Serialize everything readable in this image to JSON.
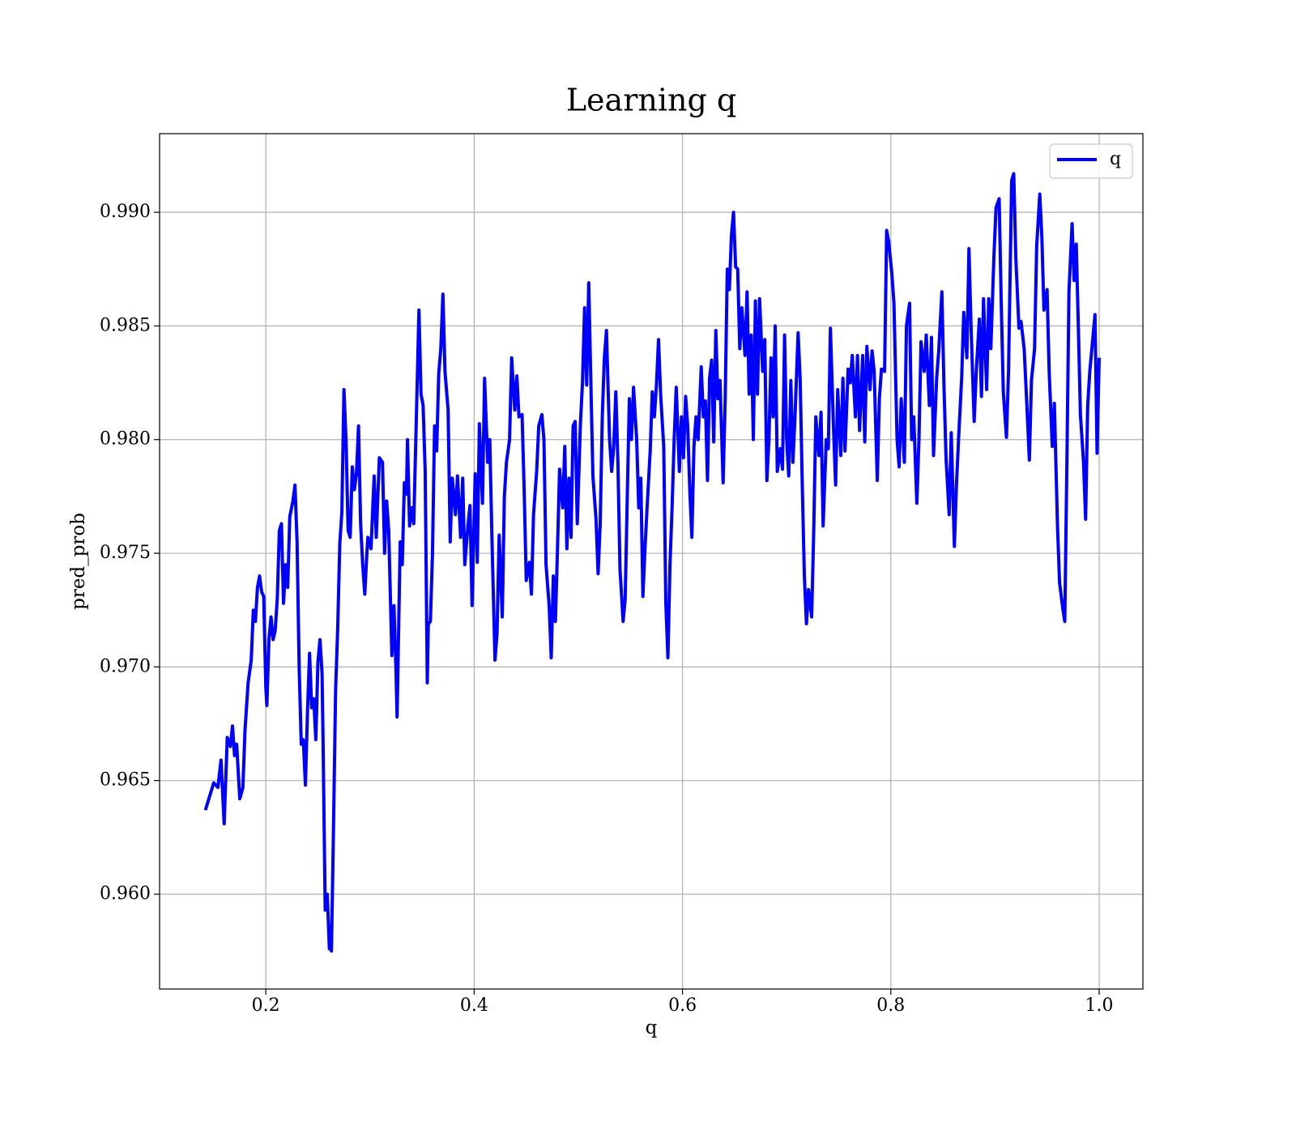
{
  "chart_data": {
    "type": "line",
    "title": "Learning q",
    "xlabel": "q",
    "ylabel": "pred_prob",
    "xlim": [
      0.098,
      1.042
    ],
    "ylim": [
      0.95583,
      0.99346
    ],
    "xticks": [
      0.2,
      0.4,
      0.6,
      0.8,
      {
        "value": 1,
        "label": "1.0"
      }
    ],
    "yticks": [
      {
        "value": 0.96,
        "label": "0.960"
      },
      0.965,
      {
        "value": 0.97,
        "label": "0.970"
      },
      0.975,
      {
        "value": 0.98,
        "label": "0.980"
      },
      0.985,
      {
        "value": 0.99,
        "label": "0.990"
      }
    ],
    "grid": true,
    "legend": "upper right",
    "x": [
      0.142,
      0.15,
      0.154,
      0.157,
      0.16,
      0.163,
      0.166,
      0.168,
      0.17,
      0.172,
      0.175,
      0.178,
      0.18,
      0.183,
      0.186,
      0.188,
      0.19,
      0.192,
      0.194,
      0.196,
      0.198,
      0.2,
      0.201,
      0.203,
      0.205,
      0.207,
      0.209,
      0.211,
      0.213,
      0.215,
      0.217,
      0.219,
      0.221,
      0.223,
      0.226,
      0.228,
      0.23,
      0.232,
      0.234,
      0.236,
      0.238,
      0.24,
      0.242,
      0.244,
      0.246,
      0.248,
      0.25,
      0.252,
      0.254,
      0.255,
      0.257,
      0.259,
      0.261,
      0.262,
      0.263,
      0.265,
      0.267,
      0.269,
      0.271,
      0.273,
      0.275,
      0.277,
      0.279,
      0.281,
      0.283,
      0.285,
      0.287,
      0.289,
      0.291,
      0.293,
      0.295,
      0.297,
      0.298,
      0.301,
      0.304,
      0.306,
      0.309,
      0.312,
      0.314,
      0.316,
      0.318,
      0.321,
      0.323,
      0.325,
      0.326,
      0.329,
      0.331,
      0.333,
      0.335,
      0.336,
      0.338,
      0.34,
      0.342,
      0.344,
      0.347,
      0.349,
      0.351,
      0.353,
      0.355,
      0.356,
      0.358,
      0.36,
      0.362,
      0.364,
      0.366,
      0.368,
      0.37,
      0.372,
      0.375,
      0.377,
      0.379,
      0.382,
      0.384,
      0.387,
      0.389,
      0.391,
      0.394,
      0.396,
      0.398,
      0.401,
      0.403,
      0.405,
      0.408,
      0.41,
      0.413,
      0.415,
      0.417,
      0.42,
      0.422,
      0.424,
      0.427,
      0.429,
      0.431,
      0.434,
      0.436,
      0.439,
      0.441,
      0.443,
      0.446,
      0.448,
      0.45,
      0.453,
      0.455,
      0.457,
      0.46,
      0.462,
      0.465,
      0.467,
      0.469,
      0.472,
      0.474,
      0.476,
      0.478,
      0.48,
      0.482,
      0.485,
      0.487,
      0.489,
      0.491,
      0.493,
      0.495,
      0.497,
      0.499,
      0.502,
      0.504,
      0.506,
      0.508,
      0.51,
      0.512,
      0.514,
      0.517,
      0.519,
      0.521,
      0.523,
      0.525,
      0.527,
      0.53,
      0.532,
      0.534,
      0.536,
      0.538,
      0.54,
      0.543,
      0.545,
      0.547,
      0.549,
      0.551,
      0.553,
      0.556,
      0.558,
      0.56,
      0.562,
      0.564,
      0.566,
      0.569,
      0.571,
      0.573,
      0.575,
      0.577,
      0.579,
      0.582,
      0.584,
      0.586,
      0.588,
      0.59,
      0.592,
      0.594,
      0.597,
      0.599,
      0.601,
      0.603,
      0.605,
      0.607,
      0.609,
      0.611,
      0.613,
      0.615,
      0.618,
      0.62,
      0.622,
      0.624,
      0.626,
      0.628,
      0.63,
      0.632,
      0.634,
      0.636,
      0.639,
      0.641,
      0.643,
      0.645,
      0.647,
      0.649,
      0.651,
      0.653,
      0.655,
      0.657,
      0.66,
      0.662,
      0.664,
      0.666,
      0.668,
      0.67,
      0.672,
      0.674,
      0.677,
      0.679,
      0.681,
      0.683,
      0.685,
      0.687,
      0.689,
      0.691,
      0.694,
      0.696,
      0.698,
      0.7,
      0.702,
      0.704,
      0.706,
      0.708,
      0.711,
      0.713,
      0.715,
      0.717,
      0.719,
      0.721,
      0.724,
      0.726,
      0.728,
      0.731,
      0.733,
      0.735,
      0.738,
      0.74,
      0.742,
      0.745,
      0.747,
      0.749,
      0.752,
      0.754,
      0.756,
      0.759,
      0.761,
      0.763,
      0.766,
      0.768,
      0.77,
      0.773,
      0.775,
      0.777,
      0.78,
      0.782,
      0.784,
      0.787,
      0.789,
      0.791,
      0.794,
      0.796,
      0.798,
      0.801,
      0.803,
      0.806,
      0.808,
      0.81,
      0.813,
      0.815,
      0.818,
      0.82,
      0.822,
      0.825,
      0.827,
      0.829,
      0.832,
      0.834,
      0.837,
      0.839,
      0.841,
      0.844,
      0.846,
      0.849,
      0.851,
      0.853,
      0.856,
      0.858,
      0.861,
      0.863,
      0.865,
      0.868,
      0.87,
      0.873,
      0.875,
      0.877,
      0.88,
      0.882,
      0.885,
      0.887,
      0.889,
      0.892,
      0.894,
      0.896,
      0.899,
      0.901,
      0.904,
      0.906,
      0.908,
      0.911,
      0.913,
      0.916,
      0.918,
      0.92,
      0.923,
      0.925,
      0.928,
      0.93,
      0.933,
      0.935,
      0.938,
      0.94,
      0.943,
      0.945,
      0.947,
      0.95,
      0.952,
      0.955,
      0.957,
      0.96,
      0.962,
      0.965,
      0.967,
      0.969,
      0.971,
      0.974,
      0.976,
      0.978,
      0.98,
      0.982,
      0.985,
      0.987,
      0.989,
      0.991,
      0.993,
      0.996,
      0.998,
      1.0
    ],
    "series": [
      {
        "name": "q",
        "color": "#0000ff",
        "values": [
          0.9637,
          0.9649,
          0.9647,
          0.9659,
          0.9631,
          0.9669,
          0.9665,
          0.9674,
          0.9661,
          0.9666,
          0.9642,
          0.9647,
          0.9672,
          0.9693,
          0.9703,
          0.9725,
          0.972,
          0.9735,
          0.974,
          0.9733,
          0.9731,
          0.9691,
          0.9683,
          0.9712,
          0.9722,
          0.9712,
          0.9716,
          0.973,
          0.976,
          0.9763,
          0.9728,
          0.9745,
          0.9735,
          0.9766,
          0.9773,
          0.978,
          0.9755,
          0.97,
          0.9666,
          0.9668,
          0.9648,
          0.968,
          0.9706,
          0.9682,
          0.9686,
          0.9668,
          0.9702,
          0.9712,
          0.9697,
          0.9666,
          0.9593,
          0.96,
          0.9576,
          0.9586,
          0.9575,
          0.963,
          0.969,
          0.9717,
          0.9754,
          0.9768,
          0.9822,
          0.98,
          0.976,
          0.9757,
          0.9788,
          0.9778,
          0.9785,
          0.9806,
          0.9763,
          0.9745,
          0.9732,
          0.975,
          0.9757,
          0.9752,
          0.9784,
          0.9757,
          0.9792,
          0.979,
          0.975,
          0.9773,
          0.976,
          0.9705,
          0.9727,
          0.9698,
          0.9678,
          0.9755,
          0.9745,
          0.9781,
          0.9776,
          0.98,
          0.9762,
          0.977,
          0.9763,
          0.98,
          0.9857,
          0.982,
          0.9815,
          0.9786,
          0.9693,
          0.9719,
          0.972,
          0.975,
          0.9806,
          0.9795,
          0.9829,
          0.984,
          0.9864,
          0.983,
          0.9813,
          0.9755,
          0.9783,
          0.9767,
          0.9784,
          0.9757,
          0.9783,
          0.9745,
          0.9762,
          0.9771,
          0.9727,
          0.9785,
          0.9746,
          0.9807,
          0.9772,
          0.9827,
          0.979,
          0.98,
          0.9758,
          0.9703,
          0.9715,
          0.9758,
          0.9722,
          0.9775,
          0.979,
          0.98,
          0.9836,
          0.9813,
          0.9828,
          0.981,
          0.9811,
          0.9778,
          0.9738,
          0.9746,
          0.9732,
          0.9767,
          0.9786,
          0.9806,
          0.9811,
          0.98,
          0.9745,
          0.9727,
          0.9704,
          0.974,
          0.972,
          0.9752,
          0.9787,
          0.977,
          0.9797,
          0.9752,
          0.9783,
          0.9757,
          0.9806,
          0.9808,
          0.9763,
          0.9807,
          0.9825,
          0.9858,
          0.9824,
          0.9869,
          0.9826,
          0.9784,
          0.9765,
          0.9741,
          0.9763,
          0.981,
          0.9836,
          0.9848,
          0.98,
          0.9786,
          0.9797,
          0.9821,
          0.979,
          0.9743,
          0.972,
          0.973,
          0.9775,
          0.9818,
          0.98,
          0.9823,
          0.98,
          0.977,
          0.9783,
          0.9731,
          0.9752,
          0.977,
          0.9795,
          0.9821,
          0.981,
          0.9824,
          0.9844,
          0.982,
          0.9797,
          0.9728,
          0.9704,
          0.9745,
          0.977,
          0.98,
          0.9823,
          0.9786,
          0.981,
          0.9792,
          0.9819,
          0.9806,
          0.9778,
          0.9757,
          0.9797,
          0.981,
          0.98,
          0.9832,
          0.981,
          0.9817,
          0.9782,
          0.9827,
          0.9835,
          0.9799,
          0.9848,
          0.9818,
          0.9826,
          0.9781,
          0.9818,
          0.9875,
          0.9866,
          0.989,
          0.99,
          0.9876,
          0.9875,
          0.984,
          0.9858,
          0.9837,
          0.9865,
          0.982,
          0.9846,
          0.98,
          0.9861,
          0.982,
          0.9862,
          0.983,
          0.9844,
          0.9782,
          0.98,
          0.9836,
          0.981,
          0.985,
          0.9786,
          0.9796,
          0.9787,
          0.9846,
          0.98,
          0.9784,
          0.9826,
          0.979,
          0.981,
          0.9847,
          0.9826,
          0.978,
          0.974,
          0.9719,
          0.9734,
          0.9722,
          0.976,
          0.981,
          0.9793,
          0.9812,
          0.9762,
          0.98,
          0.9796,
          0.9849,
          0.9805,
          0.978,
          0.9822,
          0.9793,
          0.9827,
          0.9795,
          0.9831,
          0.9825,
          0.9837,
          0.981,
          0.9837,
          0.9804,
          0.9837,
          0.9799,
          0.9841,
          0.9822,
          0.9839,
          0.983,
          0.9782,
          0.9818,
          0.9831,
          0.983,
          0.9892,
          0.9887,
          0.9873,
          0.986,
          0.98,
          0.9788,
          0.9818,
          0.979,
          0.985,
          0.986,
          0.98,
          0.981,
          0.9772,
          0.98,
          0.9843,
          0.983,
          0.9846,
          0.9815,
          0.9845,
          0.9793,
          0.9827,
          0.9839,
          0.9865,
          0.9824,
          0.9792,
          0.9767,
          0.9803,
          0.9753,
          0.978,
          0.98,
          0.9827,
          0.9856,
          0.9836,
          0.9884,
          0.985,
          0.9808,
          0.983,
          0.9853,
          0.9819,
          0.9862,
          0.9822,
          0.9862,
          0.984,
          0.9881,
          0.9902,
          0.9906,
          0.986,
          0.9821,
          0.9801,
          0.983,
          0.9914,
          0.9917,
          0.988,
          0.9849,
          0.9852,
          0.984,
          0.9821,
          0.9791,
          0.9826,
          0.984,
          0.9885,
          0.9908,
          0.9889,
          0.9857,
          0.9866,
          0.983,
          0.9797,
          0.9816,
          0.9762,
          0.9737,
          0.9726,
          0.972,
          0.9789,
          0.9865,
          0.9895,
          0.987,
          0.9886,
          0.985,
          0.9811,
          0.979,
          0.9765,
          0.9815,
          0.983,
          0.984,
          0.9855,
          0.9794,
          0.9836
        ]
      }
    ]
  }
}
